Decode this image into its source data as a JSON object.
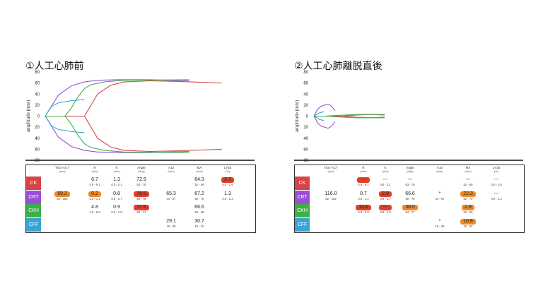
{
  "panels": [
    {
      "title": "①人工心肺前",
      "ylabel": "amplitude (mm)",
      "yticks": [
        "80",
        "60",
        "40",
        "20",
        "0",
        "20",
        "40",
        "60",
        "80"
      ]
    },
    {
      "title": "②人工心肺離脱直後",
      "ylabel": "amplitude (mm)",
      "yticks": [
        "80",
        "60",
        "40",
        "20",
        "0",
        "20",
        "40",
        "60",
        "80"
      ]
    }
  ],
  "table": {
    "columns": [
      {
        "name": "TEG-ACT",
        "unit": "(sec)"
      },
      {
        "name": "R",
        "unit": "(min)"
      },
      {
        "name": "K",
        "unit": "(min)"
      },
      {
        "name": "Angle",
        "unit": "(deg)"
      },
      {
        "name": "A10",
        "unit": "(mm)"
      },
      {
        "name": "MA",
        "unit": "(mm)"
      },
      {
        "name": "LY30",
        "unit": "(%)"
      }
    ],
    "rows": [
      {
        "label": "CK",
        "color": "#d64545"
      },
      {
        "label": "CRT",
        "color": "#9b4fd6"
      },
      {
        "label": "CKH",
        "color": "#3fae4a"
      },
      {
        "label": "CFF",
        "color": "#3aa5d1"
      }
    ]
  },
  "before": {
    "CK": [
      {
        "v": "",
        "r": ""
      },
      {
        "v": "6.7",
        "r": "4.6 - 9.1"
      },
      {
        "v": "1.3",
        "r": "0.8 - 2.1"
      },
      {
        "v": "72.9",
        "r": "63 - 78"
      },
      {
        "v": "",
        "r": ""
      },
      {
        "v": "64.3",
        "r": "52 - 69"
      },
      {
        "v": "2.7",
        "r": "0.0 - 2.6",
        "bad": "red"
      }
    ],
    "CRT": [
      {
        "v": "69.2",
        "r": "82 - 152",
        "bad": "orange"
      },
      {
        "v": "0.2",
        "r": "0.3 - 1.1",
        "bad": "orange"
      },
      {
        "v": "0.8",
        "r": "0.6 - 2.7"
      },
      {
        "v": "76.5",
        "r": "60 - 78",
        "bad": "red"
      },
      {
        "v": "65.3",
        "r": "44 - 67"
      },
      {
        "v": "67.2",
        "r": "52 - 70"
      },
      {
        "v": "1.3",
        "r": "0.0 - 2.2"
      }
    ],
    "CKH": [
      {
        "v": "",
        "r": ""
      },
      {
        "v": "4.8",
        "r": "4.3 - 8.3"
      },
      {
        "v": "0.9",
        "r": "0.8 - 1.9"
      },
      {
        "v": "77.6",
        "r": "64 - 77",
        "bad": "red"
      },
      {
        "v": "",
        "r": ""
      },
      {
        "v": "66.6",
        "r": "52 - 69"
      },
      {
        "v": "",
        "r": ""
      }
    ],
    "CFF": [
      {
        "v": "",
        "r": ""
      },
      {
        "v": "",
        "r": ""
      },
      {
        "v": "",
        "r": ""
      },
      {
        "v": "",
        "r": ""
      },
      {
        "v": "29.1",
        "r": "15 - 30"
      },
      {
        "v": "30.7",
        "r": "15 - 32"
      },
      {
        "v": "",
        "r": ""
      }
    ]
  },
  "after": {
    "CK": [
      {
        "v": "",
        "r": ""
      },
      {
        "v": "---",
        "r": "4.6 - 9.1",
        "bad": "red"
      },
      {
        "v": "---",
        "r": "0.8 - 2.1"
      },
      {
        "v": "---",
        "r": "63 - 78"
      },
      {
        "v": "",
        "r": ""
      },
      {
        "v": "---",
        "r": "52 - 69"
      },
      {
        "v": "---",
        "r": "0.0 - 2.6"
      }
    ],
    "CRT": [
      {
        "v": "116.0",
        "r": "82 - 152"
      },
      {
        "v": "0.7",
        "r": "0.3 - 1.1"
      },
      {
        "v": "2.9",
        "r": "0.6 - 2.7",
        "bad": "red"
      },
      {
        "v": "66.6",
        "r": "60 - 78"
      },
      {
        "v": "*",
        "r": "44 - 67"
      },
      {
        "v": "22.3",
        "r": "52 - 70",
        "bad": "orange"
      },
      {
        "v": "---",
        "r": "0.0 - 2.2"
      }
    ],
    "CKH": [
      {
        "v": "",
        "r": ""
      },
      {
        "v": "12.6",
        "r": "4.3 - 8.3",
        "bad": "red"
      },
      {
        "v": "---",
        "r": "0.8 - 1.9",
        "bad": "red"
      },
      {
        "v": "38.0",
        "r": "64 - 77",
        "bad": "orange"
      },
      {
        "v": "",
        "r": ""
      },
      {
        "v": "2.8",
        "r": "52 - 69",
        "bad": "orange"
      },
      {
        "v": "",
        "r": ""
      }
    ],
    "CFF": [
      {
        "v": "",
        "r": ""
      },
      {
        "v": "",
        "r": ""
      },
      {
        "v": "",
        "r": ""
      },
      {
        "v": "",
        "r": ""
      },
      {
        "v": "*",
        "r": "15 - 30"
      },
      {
        "v": "10.8",
        "r": "15 - 32",
        "bad": "orange"
      },
      {
        "v": "",
        "r": ""
      }
    ]
  },
  "chart_data": [
    {
      "type": "line",
      "title": "①人工心肺前",
      "ylabel": "amplitude (mm)",
      "ylim": [
        -80,
        80
      ],
      "series": [
        {
          "color": "#d64545",
          "x": [
            0,
            20,
            30,
            40,
            50,
            60,
            80,
            100,
            135
          ],
          "upper": [
            0,
            0,
            0,
            40,
            56,
            62,
            64,
            63,
            60
          ]
        },
        {
          "color": "#9b4fd6",
          "x": [
            0,
            10,
            20,
            30,
            40,
            55,
            80,
            110
          ],
          "upper": [
            0,
            38,
            55,
            62,
            65,
            66,
            66,
            64
          ]
        },
        {
          "color": "#3fae4a",
          "x": [
            0,
            15,
            20,
            25,
            30,
            35,
            45,
            60,
            110
          ],
          "upper": [
            0,
            0,
            15,
            35,
            50,
            57,
            62,
            65,
            66
          ]
        },
        {
          "color": "#3aa5d1",
          "x": [
            0,
            5,
            10,
            20,
            30
          ],
          "upper": [
            0,
            18,
            24,
            28,
            30
          ]
        }
      ]
    },
    {
      "type": "line",
      "title": "②人工心肺離脱直後",
      "ylabel": "amplitude (mm)",
      "ylim": [
        -80,
        80
      ],
      "series": [
        {
          "color": "#d64545",
          "x": [
            0,
            40,
            60,
            80,
            100
          ],
          "upper": [
            0,
            0,
            2,
            3,
            2
          ]
        },
        {
          "color": "#9b4fd6",
          "x": [
            0,
            5,
            10,
            20,
            25,
            30
          ],
          "upper": [
            0,
            12,
            18,
            22,
            18,
            10
          ]
        },
        {
          "color": "#3fae4a",
          "x": [
            0,
            15,
            30,
            60,
            100
          ],
          "upper": [
            0,
            0,
            1,
            3,
            3
          ]
        },
        {
          "color": "#3aa5d1",
          "x": [
            0,
            8,
            14
          ],
          "upper": [
            0,
            6,
            8
          ]
        }
      ]
    }
  ]
}
